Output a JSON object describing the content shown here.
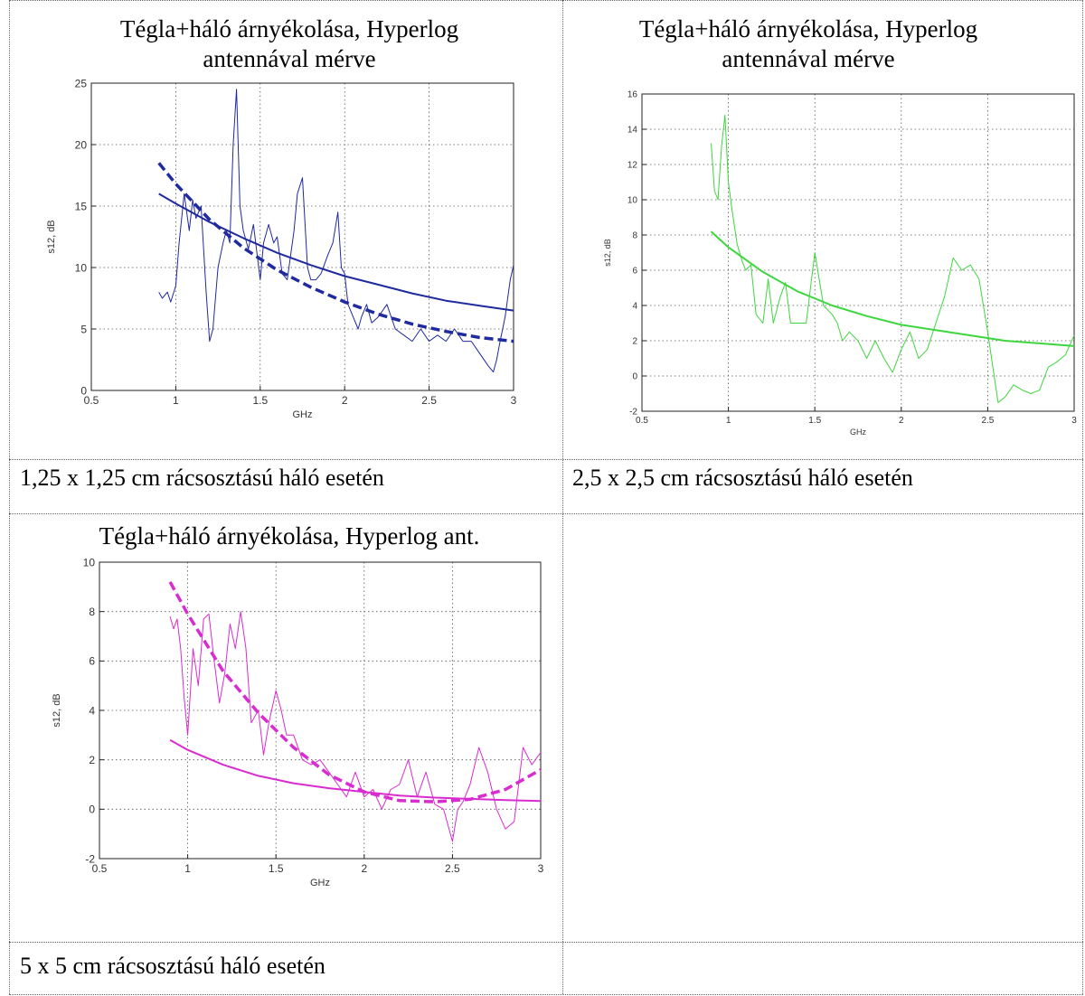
{
  "charts": [
    {
      "title_line1": "Tégla+háló árnyékolása, Hyperlog",
      "title_line2": "antennával mérve",
      "caption": "1,25 x 1,25 cm rácsosztású háló esetén"
    },
    {
      "title_line1": "Tégla+háló árnyékolása, Hyperlog",
      "title_line2": "antennával mérve",
      "caption": "2,5 x 2,5 cm rácsosztású háló esetén"
    },
    {
      "title_line1": "Tégla+háló árnyékolása, Hyperlog ant.",
      "title_line2": "",
      "caption": "5 x 5 cm rácsosztású háló esetén"
    }
  ],
  "chart_data": [
    {
      "type": "line",
      "title": "Tégla+háló árnyékolása, Hyperlog antennával mérve",
      "xlabel": "GHz",
      "ylabel": "s12, dB",
      "xlim": [
        0.5,
        3
      ],
      "ylim": [
        0,
        25
      ],
      "xticks": [
        0.5,
        1,
        1.5,
        2,
        2.5,
        3
      ],
      "yticks": [
        0,
        5,
        10,
        15,
        20,
        25
      ],
      "grid": true,
      "color": "#1f2a9e",
      "series": [
        {
          "style": "thin",
          "x": [
            0.9,
            0.92,
            0.95,
            0.97,
            1.0,
            1.02,
            1.05,
            1.08,
            1.1,
            1.12,
            1.15,
            1.18,
            1.2,
            1.22,
            1.25,
            1.28,
            1.3,
            1.32,
            1.34,
            1.36,
            1.38,
            1.4,
            1.43,
            1.46,
            1.5,
            1.52,
            1.55,
            1.58,
            1.6,
            1.63,
            1.66,
            1.7,
            1.72,
            1.75,
            1.78,
            1.8,
            1.83,
            1.86,
            1.9,
            1.93,
            1.96,
            1.98,
            2.0,
            2.02,
            2.05,
            2.08,
            2.1,
            2.13,
            2.16,
            2.2,
            2.25,
            2.3,
            2.35,
            2.4,
            2.45,
            2.5,
            2.55,
            2.6,
            2.65,
            2.7,
            2.75,
            2.8,
            2.85,
            2.88,
            2.9,
            2.92,
            2.95,
            2.98,
            3.0
          ],
          "values": [
            8,
            7.5,
            8,
            7.2,
            8.5,
            12,
            16,
            13,
            15.5,
            14,
            15,
            8,
            4,
            5,
            10,
            12,
            13,
            12,
            20,
            24.5,
            15,
            13,
            11.5,
            13.5,
            9,
            12,
            13.5,
            12,
            12.5,
            9.5,
            9,
            13,
            16,
            17.3,
            10,
            9,
            9,
            9.5,
            11,
            12,
            14.5,
            10,
            9.5,
            7,
            6,
            5,
            6,
            7,
            5.5,
            6,
            7,
            5,
            4.5,
            4,
            5,
            4,
            4.5,
            4,
            5,
            4,
            4,
            3,
            2,
            1.5,
            2.5,
            4,
            6,
            9,
            10.2
          ]
        },
        {
          "style": "solid-fit",
          "x": [
            0.9,
            1.0,
            1.2,
            1.4,
            1.6,
            1.8,
            2.0,
            2.2,
            2.4,
            2.6,
            2.8,
            3.0
          ],
          "values": [
            16,
            15.2,
            13.7,
            12.4,
            11.2,
            10.2,
            9.3,
            8.6,
            7.9,
            7.3,
            6.9,
            6.5
          ]
        },
        {
          "style": "dashed-fit",
          "x": [
            0.9,
            1.0,
            1.2,
            1.4,
            1.6,
            1.8,
            2.0,
            2.2,
            2.4,
            2.6,
            2.8,
            3.0
          ],
          "values": [
            18.5,
            16.8,
            13.9,
            11.6,
            9.8,
            8.4,
            7.2,
            6.2,
            5.4,
            4.8,
            4.3,
            4.0
          ]
        }
      ]
    },
    {
      "type": "line",
      "title": "Tégla+háló árnyékolása, Hyperlog antennával mérve",
      "xlabel": "GHz",
      "ylabel": "s12, dB",
      "xlim": [
        0.5,
        3
      ],
      "ylim": [
        -2,
        16
      ],
      "xticks": [
        0.5,
        1,
        1.5,
        2,
        2.5,
        3
      ],
      "yticks": [
        -2,
        0,
        2,
        4,
        6,
        8,
        10,
        12,
        14,
        16
      ],
      "grid": true,
      "color": "#3ed63e",
      "series": [
        {
          "style": "thin",
          "x": [
            0.9,
            0.92,
            0.94,
            0.96,
            0.98,
            1.0,
            1.02,
            1.05,
            1.08,
            1.1,
            1.13,
            1.16,
            1.2,
            1.23,
            1.26,
            1.3,
            1.33,
            1.36,
            1.4,
            1.45,
            1.5,
            1.55,
            1.6,
            1.63,
            1.66,
            1.7,
            1.75,
            1.8,
            1.85,
            1.9,
            1.95,
            2.0,
            2.05,
            2.1,
            2.15,
            2.2,
            2.25,
            2.3,
            2.35,
            2.4,
            2.45,
            2.5,
            2.53,
            2.56,
            2.6,
            2.65,
            2.7,
            2.75,
            2.8,
            2.85,
            2.9,
            2.95,
            3.0
          ],
          "values": [
            13.2,
            10.5,
            10,
            13,
            14.8,
            11,
            9.5,
            7.5,
            6.5,
            6,
            6.3,
            3.5,
            3,
            5.5,
            3,
            4.5,
            5.3,
            3,
            3,
            3,
            7,
            4,
            3.5,
            3,
            2,
            2.5,
            2,
            1,
            2,
            1,
            0.2,
            1.5,
            2.5,
            1,
            1.5,
            3,
            4.5,
            6.7,
            6,
            6.3,
            5.5,
            2.5,
            0.5,
            -1.5,
            -1.2,
            -0.5,
            -0.8,
            -1,
            -0.8,
            0.5,
            0.8,
            1.2,
            2.3
          ]
        },
        {
          "style": "solid-fit",
          "x": [
            0.9,
            1.0,
            1.2,
            1.4,
            1.6,
            1.8,
            2.0,
            2.2,
            2.4,
            2.6,
            2.8,
            3.0
          ],
          "values": [
            8.2,
            7.3,
            5.9,
            4.8,
            4.0,
            3.4,
            2.9,
            2.6,
            2.3,
            2.0,
            1.85,
            1.7
          ]
        }
      ]
    },
    {
      "type": "line",
      "title": "Tégla+háló árnyékolása, Hyperlog ant.",
      "xlabel": "GHz",
      "ylabel": "s12, dB",
      "xlim": [
        0.5,
        3
      ],
      "ylim": [
        -2,
        10
      ],
      "xticks": [
        0.5,
        1,
        1.5,
        2,
        2.5,
        3
      ],
      "yticks": [
        -2,
        0,
        2,
        4,
        6,
        8,
        10
      ],
      "grid": true,
      "color": "#d92cd0",
      "series": [
        {
          "style": "thin",
          "x": [
            0.9,
            0.92,
            0.94,
            0.96,
            0.98,
            1.0,
            1.03,
            1.06,
            1.09,
            1.12,
            1.15,
            1.18,
            1.21,
            1.24,
            1.27,
            1.3,
            1.33,
            1.36,
            1.4,
            1.43,
            1.46,
            1.5,
            1.53,
            1.56,
            1.6,
            1.65,
            1.7,
            1.75,
            1.8,
            1.85,
            1.9,
            1.95,
            2.0,
            2.05,
            2.1,
            2.15,
            2.2,
            2.25,
            2.3,
            2.35,
            2.4,
            2.45,
            2.5,
            2.53,
            2.56,
            2.6,
            2.65,
            2.7,
            2.75,
            2.8,
            2.85,
            2.9,
            2.95,
            3.0
          ],
          "values": [
            7.8,
            7.3,
            7.7,
            6.5,
            4.5,
            3,
            6.5,
            5,
            7.7,
            7.9,
            6,
            4.3,
            5.5,
            7.5,
            6.5,
            8,
            6.5,
            3.5,
            4,
            2.2,
            3.5,
            4.8,
            4,
            3,
            3,
            2,
            1.8,
            2,
            1.5,
            1,
            0.5,
            1.5,
            0.5,
            0.8,
            0,
            0.8,
            1,
            2,
            0.5,
            1.5,
            0.2,
            0,
            -1.3,
            0,
            0.3,
            1,
            2.5,
            1.5,
            0,
            -0.8,
            -0.5,
            2.5,
            1.8,
            2.3
          ]
        },
        {
          "style": "solid-fit",
          "x": [
            0.9,
            1.0,
            1.2,
            1.4,
            1.6,
            1.8,
            2.0,
            2.2,
            2.4,
            2.6,
            2.8,
            3.0
          ],
          "values": [
            2.8,
            2.4,
            1.8,
            1.35,
            1.05,
            0.85,
            0.7,
            0.55,
            0.47,
            0.42,
            0.37,
            0.33
          ]
        },
        {
          "style": "dashed-fit",
          "x": [
            0.9,
            1.0,
            1.2,
            1.4,
            1.6,
            1.8,
            2.0,
            2.2,
            2.4,
            2.6,
            2.8,
            3.0
          ],
          "values": [
            9.2,
            7.9,
            5.6,
            3.9,
            2.5,
            1.4,
            0.7,
            0.35,
            0.3,
            0.4,
            0.8,
            1.6
          ]
        }
      ]
    }
  ]
}
